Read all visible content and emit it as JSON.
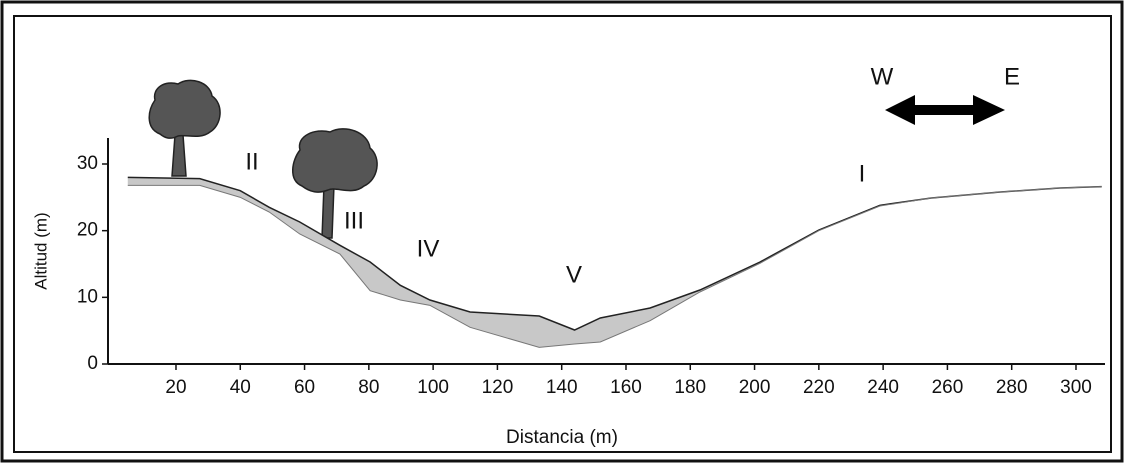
{
  "chart_data": {
    "type": "profile",
    "xlabel": "Distancia (m)",
    "ylabel": "Altitud (m)",
    "x": [
      5,
      27.4,
      40,
      49,
      58.5,
      71,
      80.4,
      89.8,
      99,
      111.5,
      133,
      144,
      152,
      167.5,
      183,
      201.7,
      220,
      239,
      255,
      276.5,
      295,
      308
    ],
    "series": [
      {
        "color": "#222222",
        "values": [
          28,
          27.8,
          26,
          23.5,
          21.3,
          17.8,
          15.3,
          11.8,
          9.6,
          7.8,
          7.2,
          5.1,
          6.9,
          8.4,
          11.1,
          15.3,
          20.1,
          23.8,
          24.9,
          25.8,
          26.4,
          26.6
        ]
      },
      {
        "color": "#c8c8c8",
        "values": [
          26.8,
          26.8,
          25,
          22.8,
          19.5,
          16.5,
          11,
          9.6,
          8.8,
          5.5,
          2.5,
          3,
          3.3,
          6.5,
          10.8,
          15.1,
          20,
          23.7,
          24.9,
          25.8,
          26.4,
          26.6
        ]
      }
    ],
    "xlim": [
      0,
      310
    ],
    "xticks": [
      20,
      40,
      60,
      80,
      100,
      120,
      140,
      160,
      180,
      200,
      220,
      240,
      260,
      280,
      300
    ],
    "ylim": [
      0,
      34
    ],
    "yticks": [
      0,
      10,
      20,
      30
    ],
    "annotations": [
      "II",
      "III",
      "IV",
      "V",
      "I",
      "W",
      "E"
    ]
  }
}
